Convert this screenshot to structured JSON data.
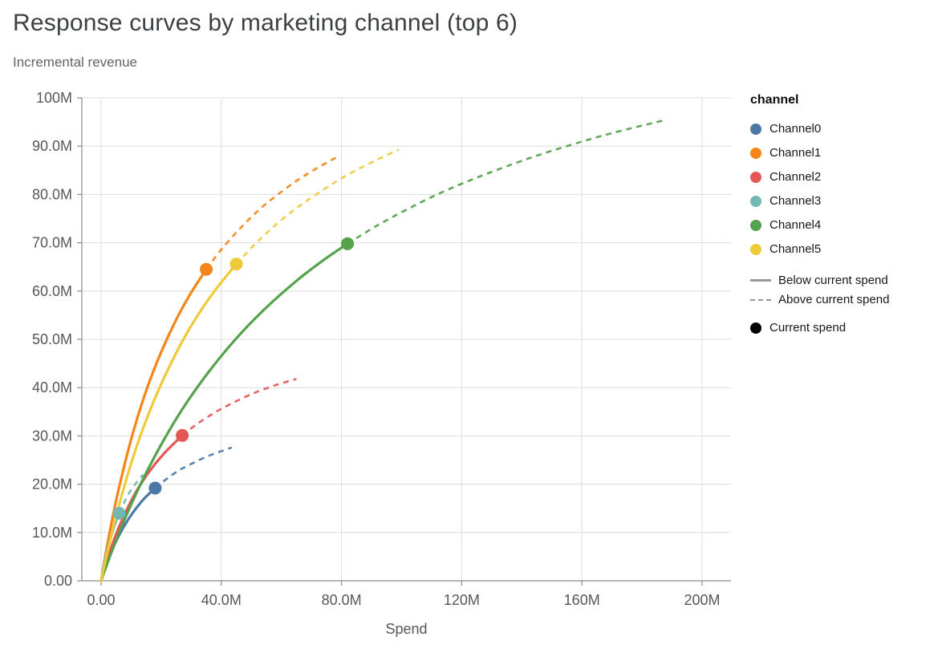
{
  "chart_data": {
    "type": "line",
    "title": "Response curves by marketing channel (top 6)",
    "subtitle": "Incremental revenue",
    "xlabel": "Spend",
    "ylabel": "Incremental revenue",
    "x_unit": "M",
    "y_unit": "M",
    "xlim": [
      0,
      200
    ],
    "ylim": [
      0,
      100
    ],
    "grid": true,
    "x_ticks": [
      {
        "v": 0,
        "label": "0.00"
      },
      {
        "v": 40,
        "label": "40.0M"
      },
      {
        "v": 80,
        "label": "80.0M"
      },
      {
        "v": 120,
        "label": "120M"
      },
      {
        "v": 160,
        "label": "160M"
      },
      {
        "v": 200,
        "label": "200M"
      }
    ],
    "y_ticks": [
      {
        "v": 0,
        "label": "0.00"
      },
      {
        "v": 10,
        "label": "10.0M"
      },
      {
        "v": 20,
        "label": "20.0M"
      },
      {
        "v": 30,
        "label": "30.0M"
      },
      {
        "v": 40,
        "label": "40.0M"
      },
      {
        "v": 50,
        "label": "50.0M"
      },
      {
        "v": 60,
        "label": "60.0M"
      },
      {
        "v": 70,
        "label": "70.0M"
      },
      {
        "v": 80,
        "label": "80.0M"
      },
      {
        "v": 90,
        "label": "90.0M"
      },
      {
        "v": 100,
        "label": "100M"
      }
    ],
    "legend": {
      "position": "right",
      "color_title": "channel",
      "line_styles": [
        {
          "style": "solid",
          "label": "Below current spend"
        },
        {
          "style": "dashed",
          "label": "Above current spend"
        }
      ],
      "point_label": "Current spend"
    },
    "series": [
      {
        "name": "Channel0",
        "color": "#4c78a8",
        "current_spend": {
          "x": 18,
          "y": 19.2
        },
        "solid_points": [
          [
            0,
            0
          ],
          [
            1,
            2.0
          ],
          [
            2,
            3.7
          ],
          [
            3,
            5.4
          ],
          [
            5,
            8.2
          ],
          [
            7,
            10.6
          ],
          [
            10,
            13.6
          ],
          [
            14,
            16.8
          ],
          [
            18,
            19.2
          ]
        ],
        "dashed_points": [
          [
            18,
            19.2
          ],
          [
            22,
            21.2
          ],
          [
            26,
            22.9
          ],
          [
            30,
            24.2
          ],
          [
            34,
            25.4
          ],
          [
            38,
            26.4
          ],
          [
            43.5,
            27.6
          ]
        ]
      },
      {
        "name": "Channel1",
        "color": "#f58518",
        "current_spend": {
          "x": 35,
          "y": 64.5
        },
        "solid_points": [
          [
            0,
            0
          ],
          [
            1,
            3.7
          ],
          [
            2,
            7.2
          ],
          [
            4,
            13.7
          ],
          [
            6,
            19.4
          ],
          [
            9,
            27.0
          ],
          [
            12,
            33.6
          ],
          [
            16,
            41.1
          ],
          [
            20,
            47.4
          ],
          [
            25,
            54.1
          ],
          [
            30,
            59.7
          ],
          [
            35,
            64.5
          ]
        ],
        "dashed_points": [
          [
            35,
            64.5
          ],
          [
            40,
            68.6
          ],
          [
            46,
            72.8
          ],
          [
            52,
            76.5
          ],
          [
            58,
            79.6
          ],
          [
            65,
            82.8
          ],
          [
            72,
            85.5
          ],
          [
            79,
            87.9
          ]
        ]
      },
      {
        "name": "Channel2",
        "color": "#e45756",
        "current_spend": {
          "x": 27,
          "y": 30.1
        },
        "solid_points": [
          [
            0,
            0
          ],
          [
            1,
            2.2
          ],
          [
            2,
            4.3
          ],
          [
            4,
            8.0
          ],
          [
            6,
            11.2
          ],
          [
            9,
            15.3
          ],
          [
            12,
            18.8
          ],
          [
            16,
            22.6
          ],
          [
            21,
            26.4
          ],
          [
            27,
            30.1
          ]
        ],
        "dashed_points": [
          [
            27,
            30.1
          ],
          [
            32,
            32.5
          ],
          [
            38,
            34.9
          ],
          [
            44,
            36.9
          ],
          [
            51,
            38.9
          ],
          [
            58,
            40.5
          ],
          [
            65,
            41.8
          ]
        ]
      },
      {
        "name": "Channel3",
        "color": "#72b7b2",
        "current_spend": {
          "x": 6,
          "y": 14.0
        },
        "solid_points": [
          [
            0,
            0
          ],
          [
            0.7,
            2.4
          ],
          [
            1.5,
            4.8
          ],
          [
            2.5,
            7.4
          ],
          [
            3.5,
            9.6
          ],
          [
            4.7,
            11.9
          ],
          [
            6,
            14.0
          ]
        ],
        "dashed_points": [
          [
            6,
            14.0
          ],
          [
            7.5,
            16.0
          ],
          [
            9,
            17.8
          ],
          [
            10.5,
            19.3
          ],
          [
            12,
            20.5
          ],
          [
            14,
            22.0
          ]
        ]
      },
      {
        "name": "Channel4",
        "color": "#54a24b",
        "current_spend": {
          "x": 82,
          "y": 69.8
        },
        "solid_points": [
          [
            0,
            0
          ],
          [
            2,
            3.5
          ],
          [
            5,
            8.4
          ],
          [
            9,
            14.4
          ],
          [
            14,
            21.1
          ],
          [
            20,
            28.2
          ],
          [
            27,
            35.5
          ],
          [
            35,
            42.6
          ],
          [
            44,
            49.5
          ],
          [
            54,
            56.0
          ],
          [
            65,
            62.1
          ],
          [
            74,
            66.4
          ],
          [
            82,
            69.8
          ]
        ],
        "dashed_points": [
          [
            82,
            69.8
          ],
          [
            92,
            73.6
          ],
          [
            103,
            77.3
          ],
          [
            115,
            80.9
          ],
          [
            128,
            84.2
          ],
          [
            142,
            87.4
          ],
          [
            156,
            90.2
          ],
          [
            170,
            92.7
          ],
          [
            187,
            95.3
          ]
        ]
      },
      {
        "name": "Channel5",
        "color": "#eeca3b",
        "current_spend": {
          "x": 45,
          "y": 65.6
        },
        "solid_points": [
          [
            0,
            0
          ],
          [
            2,
            5.7
          ],
          [
            5,
            13.4
          ],
          [
            9,
            22.3
          ],
          [
            13,
            29.9
          ],
          [
            18,
            37.9
          ],
          [
            24,
            46.0
          ],
          [
            30,
            52.8
          ],
          [
            37,
            59.4
          ],
          [
            45,
            65.6
          ]
        ],
        "dashed_points": [
          [
            45,
            65.6
          ],
          [
            52,
            70.2
          ],
          [
            60,
            74.7
          ],
          [
            68,
            78.5
          ],
          [
            77,
            82.2
          ],
          [
            86,
            85.4
          ],
          [
            99,
            89.3
          ]
        ]
      }
    ]
  }
}
